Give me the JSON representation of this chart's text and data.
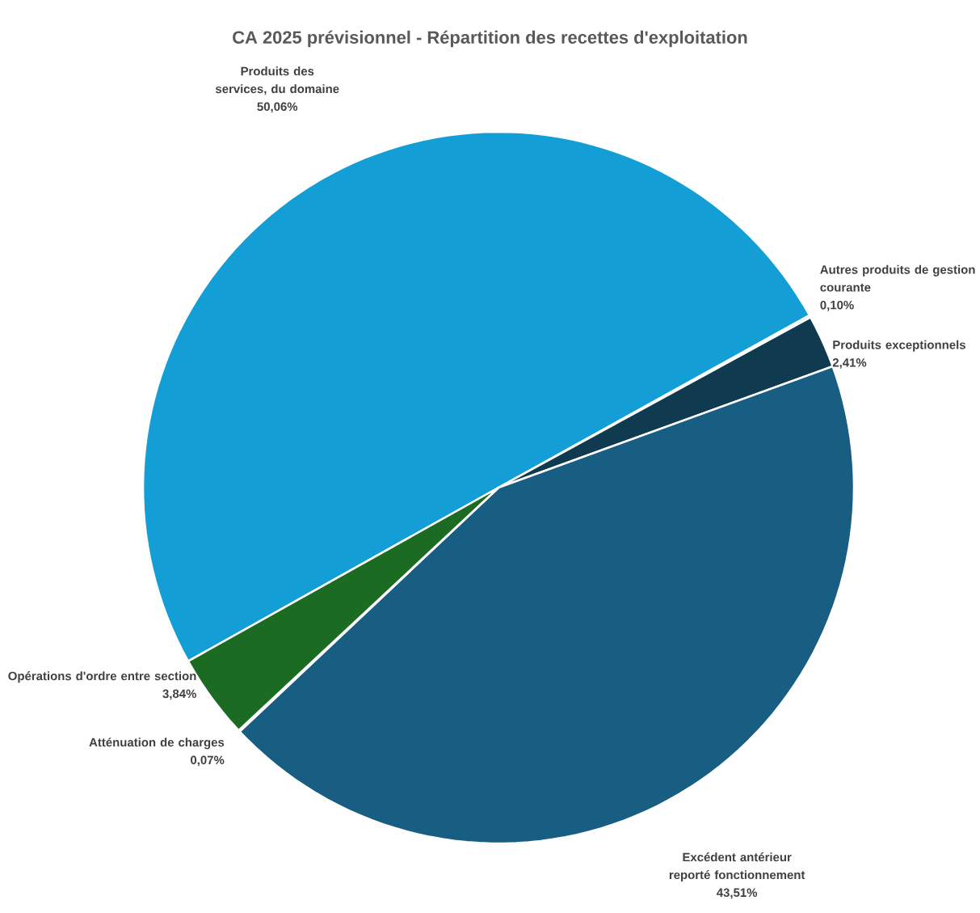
{
  "chart_data": {
    "type": "pie",
    "title": "CA 2025 prévisionnel - Répartition des recettes d'exploitation",
    "categories": [
      "Produits des services, du domaine",
      "Autres produits de gestion courante",
      "Produits exceptionnels",
      "Excédent antérieur reporté fonctionnement",
      "Atténuation de charges",
      "Opérations d'ordre entre section"
    ],
    "values": [
      50.06,
      0.1,
      2.41,
      43.51,
      0.07,
      3.84
    ],
    "value_labels": [
      "50,06%",
      "0,10%",
      "2,41%",
      "43,51%",
      "0,07%",
      "3,84%"
    ],
    "colors": [
      "#139ed6",
      "#2b7bb0",
      "#0f3a50",
      "#175e82",
      "#8fbf4f",
      "#1c6b22"
    ]
  }
}
